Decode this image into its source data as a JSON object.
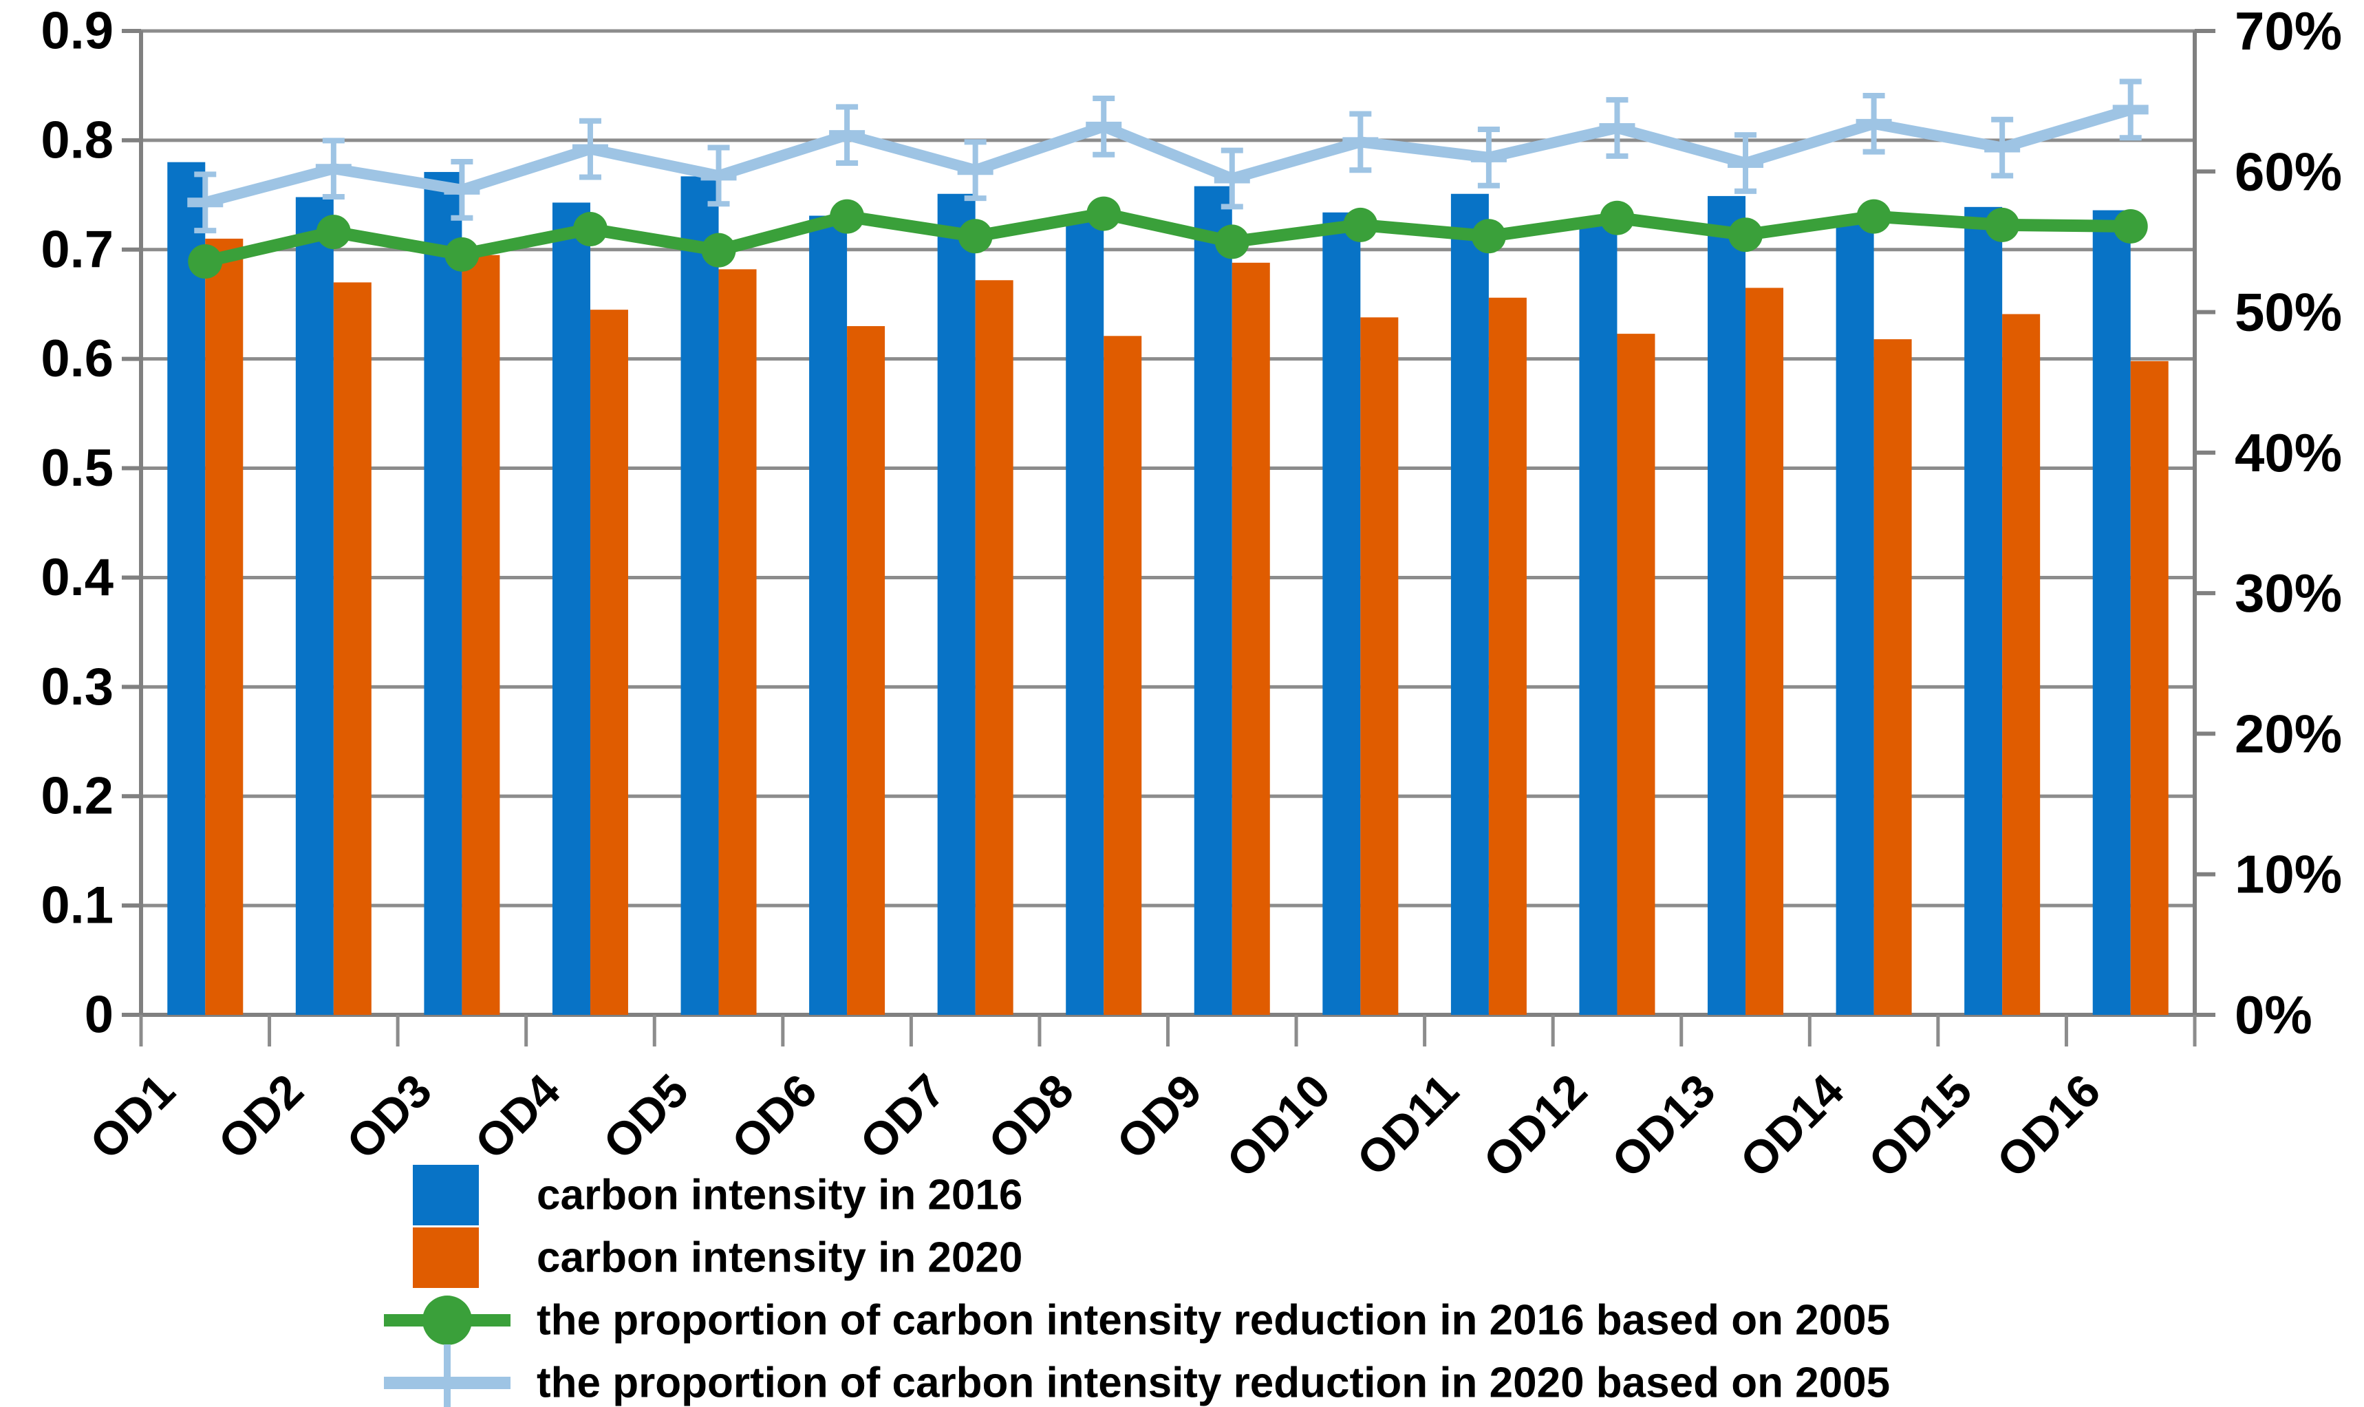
{
  "chart_data": {
    "type": "bar",
    "subtype": "bar-line-combo",
    "title": "",
    "xlabel": "",
    "ylabel_left": "",
    "ylabel_right": "",
    "grid": true,
    "legend_position": "bottom-left",
    "categories": [
      "OD1",
      "OD2",
      "OD3",
      "OD4",
      "OD5",
      "OD6",
      "OD7",
      "OD8",
      "OD9",
      "OD10",
      "OD11",
      "OD12",
      "OD13",
      "OD14",
      "OD15",
      "OD16"
    ],
    "series": [
      {
        "name": "carbon intensity in 2016",
        "type": "bar",
        "axis": "left",
        "values": [
          0.78,
          0.748,
          0.771,
          0.743,
          0.767,
          0.731,
          0.751,
          0.727,
          0.758,
          0.734,
          0.751,
          0.726,
          0.749,
          0.73,
          0.739,
          0.736
        ]
      },
      {
        "name": "carbon intensity in 2020",
        "type": "bar",
        "axis": "left",
        "values": [
          0.71,
          0.67,
          0.695,
          0.645,
          0.682,
          0.63,
          0.672,
          0.621,
          0.688,
          0.638,
          0.656,
          0.623,
          0.665,
          0.618,
          0.641,
          0.598
        ]
      },
      {
        "name": "the proportion of carbon intensity reduction in 2016 based on 2005",
        "type": "line",
        "marker": "circle",
        "axis": "right",
        "values_pct": [
          53.6,
          55.7,
          54.1,
          55.9,
          54.4,
          56.8,
          55.4,
          57.0,
          55.0,
          56.2,
          55.4,
          56.7,
          55.5,
          56.8,
          56.2,
          56.1
        ]
      },
      {
        "name": "the proportion of carbon intensity reduction in 2020 based on 2005",
        "type": "line",
        "marker": "plus-with-error-bar",
        "axis": "right",
        "error_bar_pp": 2.0,
        "values_pct": [
          57.8,
          60.2,
          58.7,
          61.6,
          59.7,
          62.6,
          60.1,
          63.2,
          59.5,
          62.1,
          61.0,
          63.1,
          60.6,
          63.4,
          61.7,
          64.4
        ]
      }
    ],
    "left_axis": {
      "min": 0,
      "max": 0.9,
      "step": 0.1,
      "tick_labels": [
        "0.9",
        "0.8",
        "0.7",
        "0.6",
        "0.5",
        "0.4",
        "0.3",
        "0.2",
        "0.1",
        "0"
      ]
    },
    "right_axis": {
      "min_label": "0%",
      "max_label": "70%",
      "step_pp": 10,
      "tick_labels": [
        "70%",
        "60%",
        "50%",
        "40%",
        "30%",
        "20%",
        "10%",
        "0%"
      ]
    }
  },
  "legend": {
    "items": [
      {
        "label": "carbon intensity in 2016",
        "swatch": "blue-square"
      },
      {
        "label": "carbon intensity in 2020",
        "swatch": "orange-square"
      },
      {
        "label": "the proportion of carbon intensity reduction in 2016 based on 2005",
        "swatch": "green-line-circle"
      },
      {
        "label": "the proportion of carbon intensity reduction in 2020 based on 2005",
        "swatch": "lightblue-line-plus"
      }
    ]
  },
  "colors": {
    "bar_2016": "#0873C6",
    "bar_2020": "#E05C00",
    "line_prop_2016": "#3AA03A",
    "line_prop_2020": "#9EC4E4",
    "gridline": "#8C8C8C",
    "axis": "#808080",
    "text": "#000000"
  }
}
